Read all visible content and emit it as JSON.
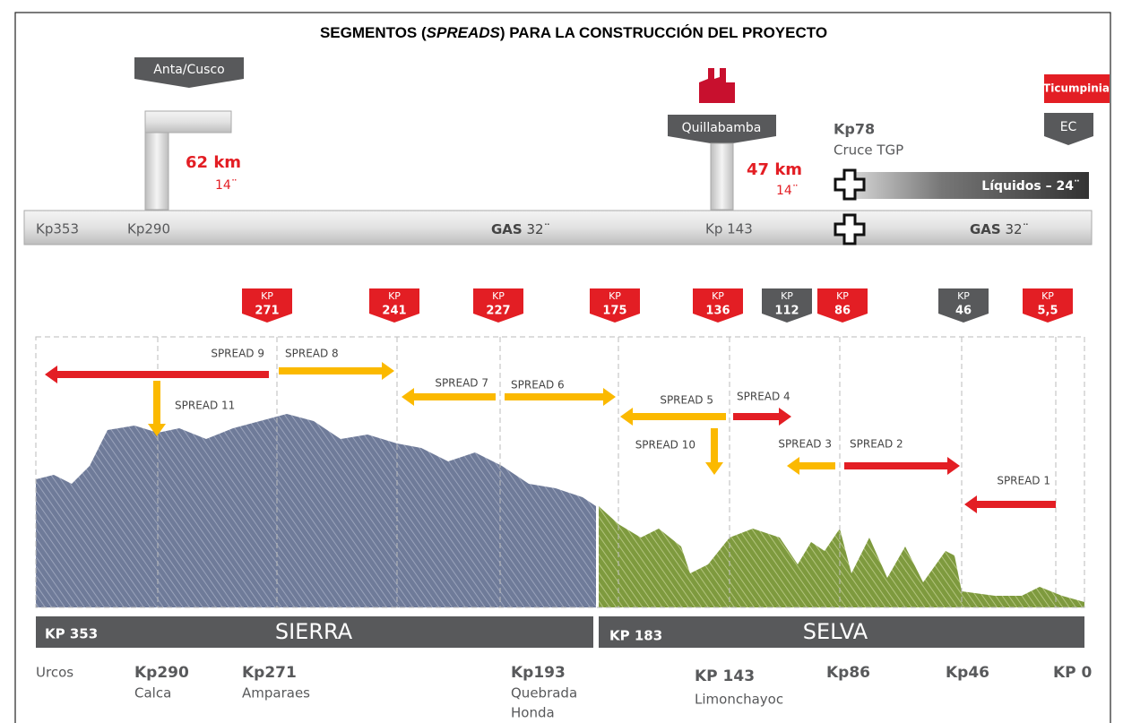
{
  "title": {
    "before": "SEGMENTOS (",
    "italic": "SPREADS",
    "after": ") PARA LA CONSTRUCCIÓN DEL PROYECTO"
  },
  "top": {
    "anta": "Anta/Cusco",
    "branch1": {
      "km": "62 km",
      "diameter": "14¨"
    },
    "quillabamba": "Quillabamba",
    "branch2": {
      "km": "47 km",
      "diameter": "14¨"
    },
    "kp78": "Kp78",
    "cruce": "Cruce TGP",
    "ticumpinia": "Ticumpinia",
    "ec": "EC",
    "liquids": "Líquidos – 24¨"
  },
  "pipeline": {
    "kp353": "Kp353",
    "kp290": "Kp290",
    "gas1": "GAS",
    "gas1_diameter": "32¨",
    "kp143": "Kp 143",
    "gas2": "GAS",
    "gas2_diameter": "32¨"
  },
  "kp_markers": [
    {
      "label": "KP",
      "kp": "271",
      "color": "#e31e24"
    },
    {
      "label": "KP",
      "kp": "241",
      "color": "#e31e24"
    },
    {
      "label": "KP",
      "kp": "227",
      "color": "#e31e24"
    },
    {
      "label": "KP",
      "kp": "175",
      "color": "#e31e24"
    },
    {
      "label": "KP",
      "kp": "136",
      "color": "#e31e24"
    },
    {
      "label": "KP",
      "kp": "112",
      "color": "#58595b"
    },
    {
      "label": "KP",
      "kp": "86",
      "color": "#e31e24"
    },
    {
      "label": "KP",
      "kp": "46",
      "color": "#58595b"
    },
    {
      "label": "KP",
      "kp": "5,5",
      "color": "#e31e24"
    }
  ],
  "spreads": [
    {
      "name": "SPREAD 9",
      "color": "#e31e24"
    },
    {
      "name": "SPREAD 8",
      "color": "#fbb900"
    },
    {
      "name": "SPREAD 11",
      "color": "#fbb900"
    },
    {
      "name": "SPREAD 7",
      "color": "#fbb900"
    },
    {
      "name": "SPREAD 6",
      "color": "#fbb900"
    },
    {
      "name": "SPREAD 5",
      "color": "#fbb900"
    },
    {
      "name": "SPREAD 4",
      "color": "#e31e24"
    },
    {
      "name": "SPREAD 10",
      "color": "#fbb900"
    },
    {
      "name": "SPREAD 3",
      "color": "#fbb900"
    },
    {
      "name": "SPREAD 2",
      "color": "#e31e24"
    },
    {
      "name": "SPREAD 1",
      "color": "#e31e24"
    }
  ],
  "regions": [
    {
      "kp": "KP 353",
      "name": "SIERRA"
    },
    {
      "kp": "KP 183",
      "name": "SELVA"
    }
  ],
  "places": [
    {
      "kp": "Urcos"
    },
    {
      "kp": "Kp290",
      "name": "Calca"
    },
    {
      "kp": "Kp271",
      "name": "Amparaes"
    },
    {
      "kp": "Kp193",
      "name": "Quebrada",
      "name2": "Honda"
    },
    {
      "kp": "KP 143",
      "name": "Limonchayoc"
    },
    {
      "kp": "Kp86"
    },
    {
      "kp": "Kp46"
    },
    {
      "kp": "KP 0"
    }
  ]
}
